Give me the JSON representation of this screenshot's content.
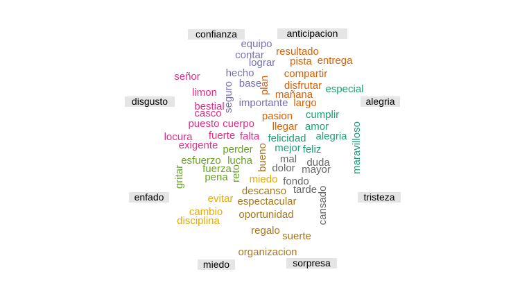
{
  "chart_data": {
    "type": "comparison-wordcloud",
    "title": "",
    "categories": [
      {
        "name": "confianza",
        "color": "#7570B3",
        "words": [
          {
            "text": "equipo",
            "size": 15
          },
          {
            "text": "contar",
            "size": 15
          },
          {
            "text": "lograr",
            "size": 15
          },
          {
            "text": "hecho",
            "size": 15
          },
          {
            "text": "base",
            "size": 15
          },
          {
            "text": "seguro",
            "size": 15
          },
          {
            "text": "importante",
            "size": 15
          }
        ]
      },
      {
        "name": "anticipacion",
        "color": "#D95F02",
        "words": [
          {
            "text": "resultado",
            "size": 15
          },
          {
            "text": "pista",
            "size": 15
          },
          {
            "text": "entrega",
            "size": 15
          },
          {
            "text": "compartir",
            "size": 15
          },
          {
            "text": "plan",
            "size": 15
          },
          {
            "text": "disfrutar",
            "size": 15
          },
          {
            "text": "mañana",
            "size": 15
          },
          {
            "text": "largo",
            "size": 15
          },
          {
            "text": "pasion",
            "size": 15
          },
          {
            "text": "llegar",
            "size": 15
          }
        ]
      },
      {
        "name": "alegria",
        "color": "#1B9E77",
        "words": [
          {
            "text": "especial",
            "size": 15
          },
          {
            "text": "cumplir",
            "size": 15
          },
          {
            "text": "amor",
            "size": 15
          },
          {
            "text": "alegria",
            "size": 15
          },
          {
            "text": "felicidad",
            "size": 15
          },
          {
            "text": "mejor",
            "size": 15
          },
          {
            "text": "feliz",
            "size": 15
          },
          {
            "text": "maravilloso",
            "size": 15
          }
        ]
      },
      {
        "name": "disgusto",
        "color": "#E7298A",
        "words": [
          {
            "text": "señor",
            "size": 15
          },
          {
            "text": "limon",
            "size": 15
          },
          {
            "text": "bestial",
            "size": 15
          },
          {
            "text": "casco",
            "size": 15
          },
          {
            "text": "puesto",
            "size": 15
          },
          {
            "text": "cuerpo",
            "size": 15
          },
          {
            "text": "locura",
            "size": 15
          },
          {
            "text": "fuerte",
            "size": 15
          },
          {
            "text": "falta",
            "size": 15
          },
          {
            "text": "exigente",
            "size": 15
          }
        ]
      },
      {
        "name": "enfado",
        "color": "#66A61E",
        "words": [
          {
            "text": "perder",
            "size": 15
          },
          {
            "text": "esfuerzo",
            "size": 15
          },
          {
            "text": "lucha",
            "size": 15
          },
          {
            "text": "fuerza",
            "size": 15
          },
          {
            "text": "pena",
            "size": 15
          },
          {
            "text": "gritar",
            "size": 15
          },
          {
            "text": "reto",
            "size": 15
          }
        ]
      },
      {
        "name": "tristeza",
        "color": "#666666",
        "words": [
          {
            "text": "mal",
            "size": 15
          },
          {
            "text": "duda",
            "size": 15
          },
          {
            "text": "dolor",
            "size": 15
          },
          {
            "text": "mayor",
            "size": 15
          },
          {
            "text": "fondo",
            "size": 15
          },
          {
            "text": "tarde",
            "size": 15
          },
          {
            "text": "cansado",
            "size": 15
          }
        ]
      },
      {
        "name": "miedo",
        "color": "#E6AB02",
        "words": [
          {
            "text": "miedo",
            "size": 15
          },
          {
            "text": "evitar",
            "size": 15
          },
          {
            "text": "cambio",
            "size": 15
          },
          {
            "text": "disciplina",
            "size": 15
          }
        ]
      },
      {
        "name": "sorpresa",
        "color": "#A6761D",
        "words": [
          {
            "text": "bueno",
            "size": 15
          },
          {
            "text": "descanso",
            "size": 15
          },
          {
            "text": "espectacular",
            "size": 15
          },
          {
            "text": "oportunidad",
            "size": 15
          },
          {
            "text": "regalo",
            "size": 15
          },
          {
            "text": "suerte",
            "size": 15
          },
          {
            "text": "organizacion",
            "size": 15
          }
        ]
      }
    ]
  }
}
